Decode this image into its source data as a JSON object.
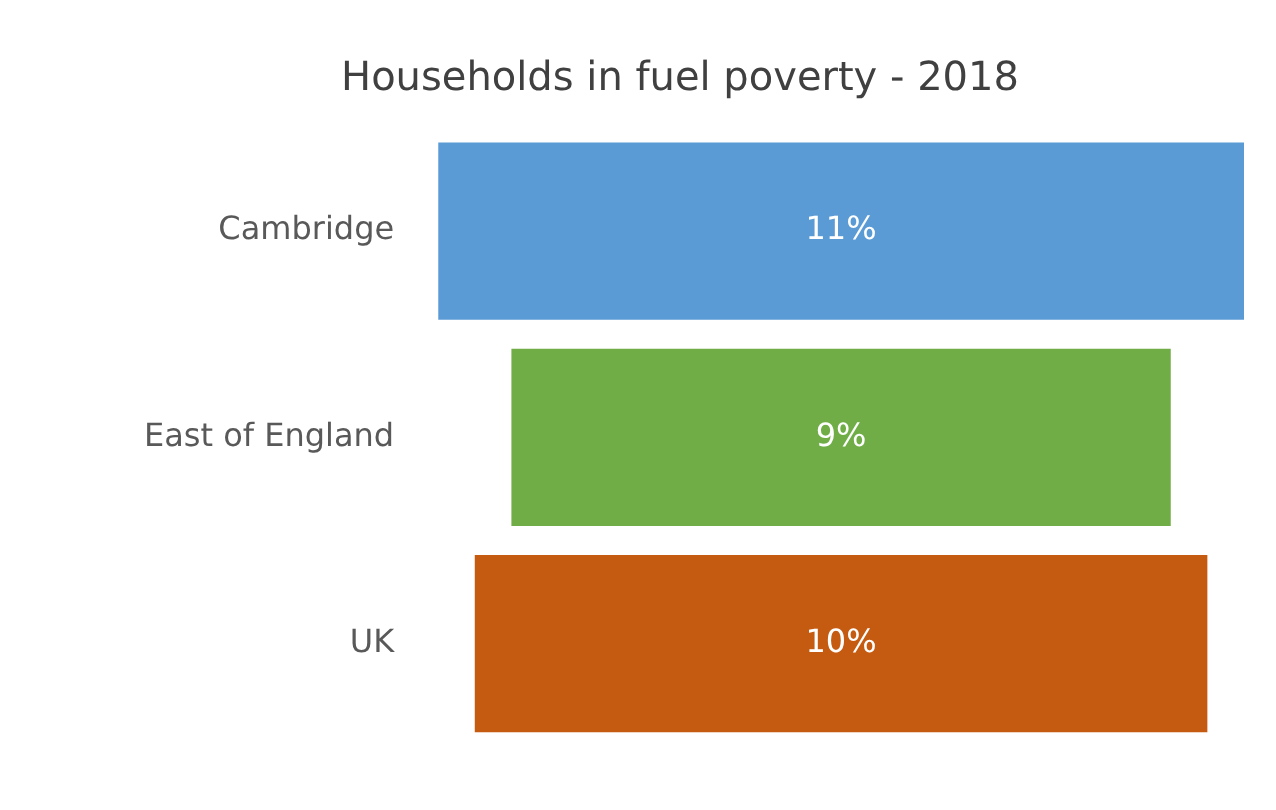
{
  "chart_data": {
    "type": "other",
    "title": "Households in fuel poverty - 2018",
    "categories": [
      "Cambridge",
      "East of England",
      "UK"
    ],
    "values": [
      11,
      9,
      10
    ],
    "colors": [
      "#5b9bd5",
      "#70ad47",
      "#c55a11"
    ],
    "value_labels": [
      "11%",
      "9%",
      "10%"
    ]
  }
}
